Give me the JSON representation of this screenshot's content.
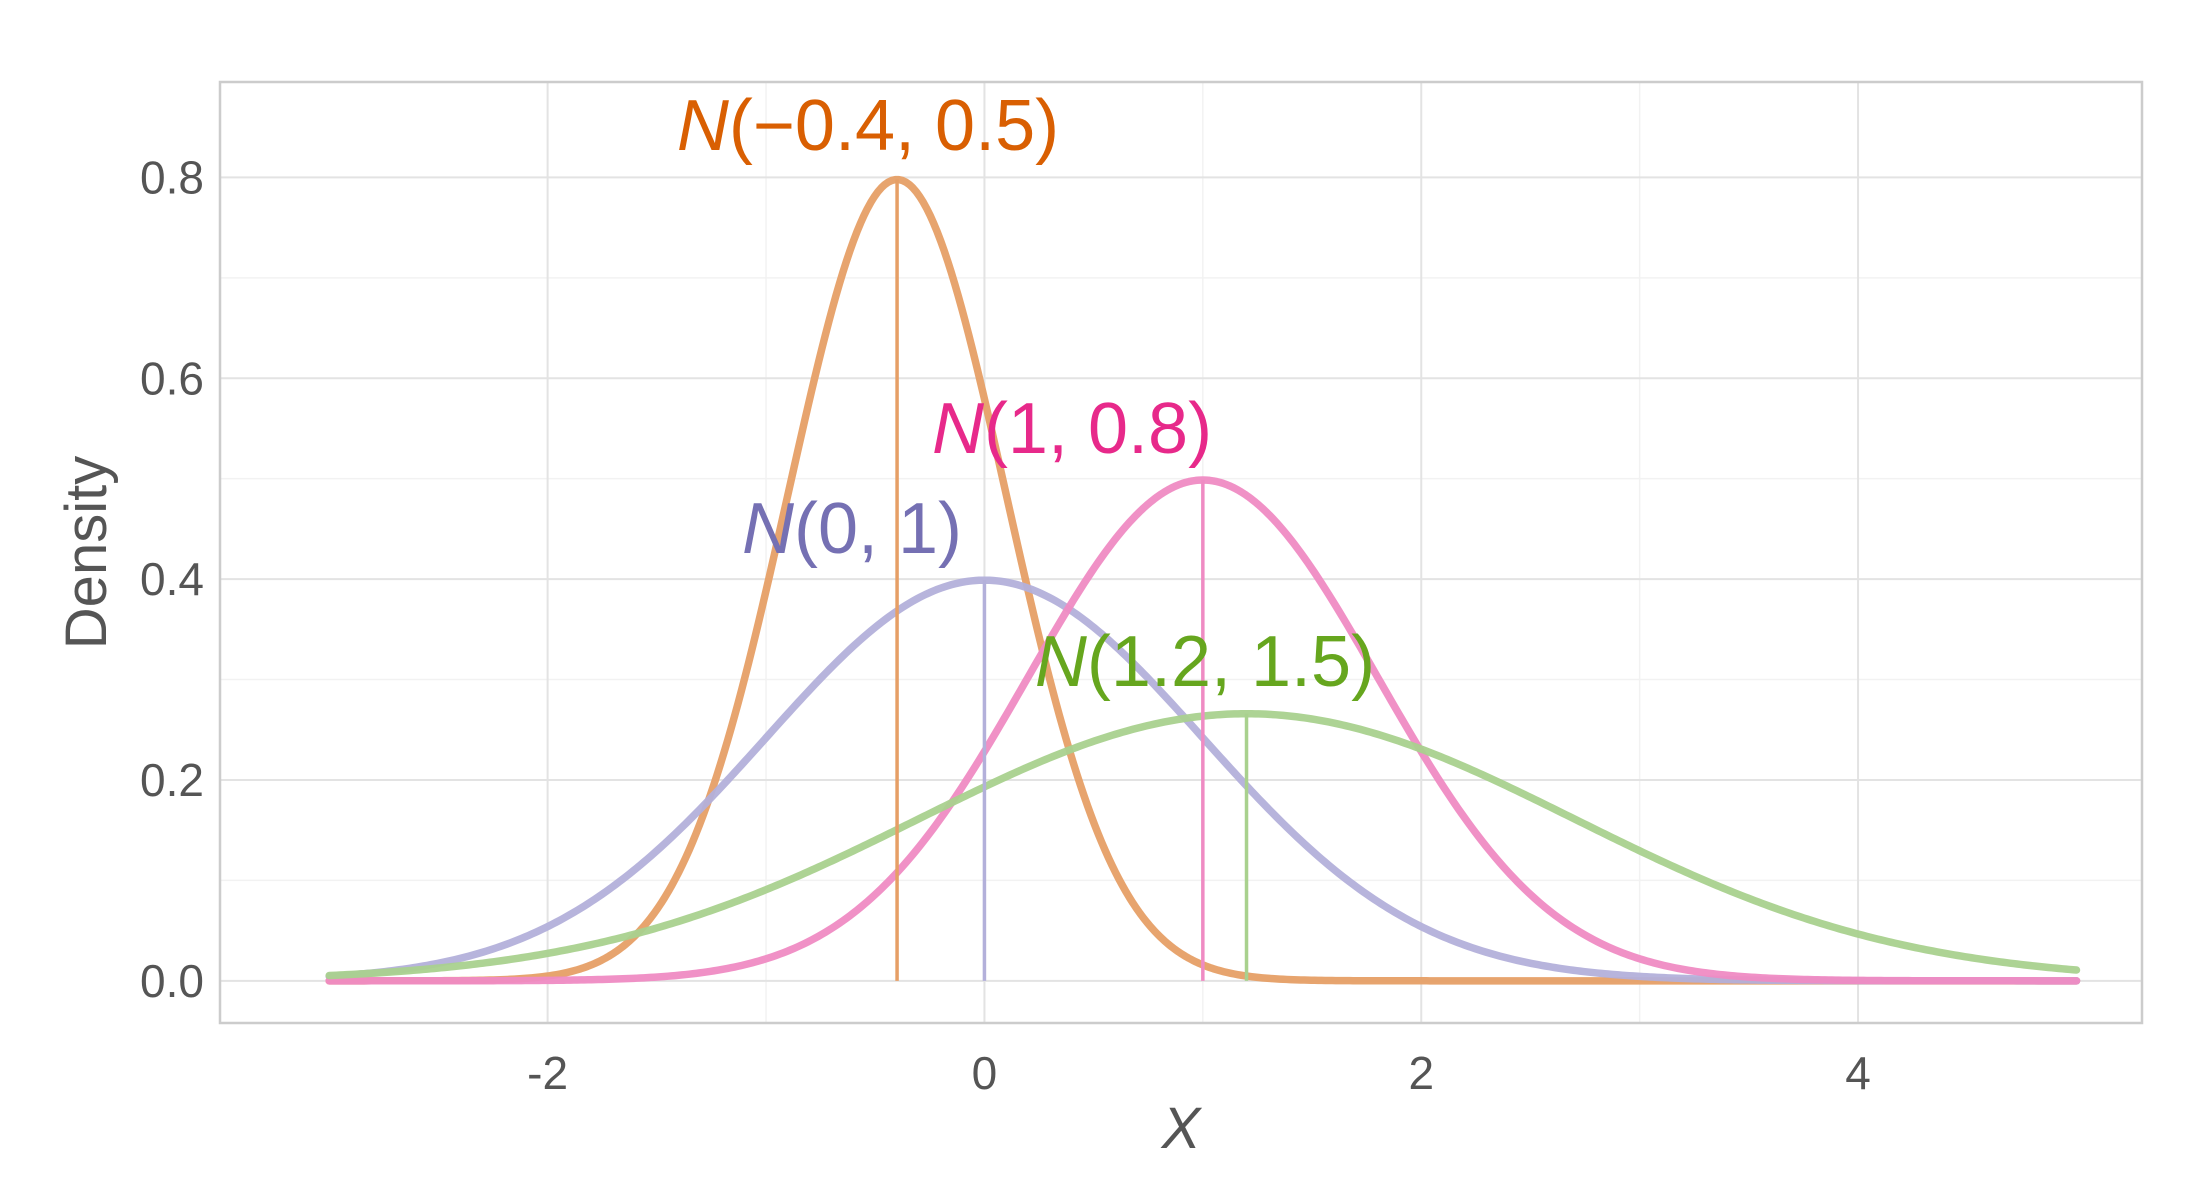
{
  "chart_data": {
    "type": "line",
    "title": "",
    "xlabel": "X",
    "ylabel": "Density",
    "xlim": [
      -3.5,
      5.3
    ],
    "ylim": [
      -0.042,
      0.895
    ],
    "x_ticks": [
      -2,
      0,
      2,
      4
    ],
    "x_tick_labels": [
      "-2",
      "0",
      "2",
      "4"
    ],
    "y_ticks": [
      0.0,
      0.2,
      0.4,
      0.6,
      0.8
    ],
    "y_tick_labels": [
      "0.0",
      "0.2",
      "0.4",
      "0.6",
      "0.8"
    ],
    "x_range": [
      -3,
      5
    ],
    "grid": true,
    "legend": "none",
    "series": [
      {
        "mean": -0.4,
        "sd": 0.5,
        "peak_density": 0.798,
        "color": "#E69F66",
        "label_color": "#D95F02",
        "label_name": "N",
        "label_args": "(−0.4, 0.5)"
      },
      {
        "mean": 0,
        "sd": 1,
        "peak_density": 0.399,
        "color": "#B3B0DA",
        "label_color": "#7570B3",
        "label_name": "N",
        "label_args": "(0, 1)"
      },
      {
        "mean": 1,
        "sd": 0.8,
        "peak_density": 0.499,
        "color": "#EF8BC3",
        "label_color": "#E7298A",
        "label_name": "N",
        "label_args": "(1, 0.8)"
      },
      {
        "mean": 1.2,
        "sd": 1.5,
        "peak_density": 0.266,
        "color": "#A9D18E",
        "label_color": "#66A61E",
        "label_name": "N",
        "label_args": "(1.2, 1.5)"
      }
    ]
  }
}
